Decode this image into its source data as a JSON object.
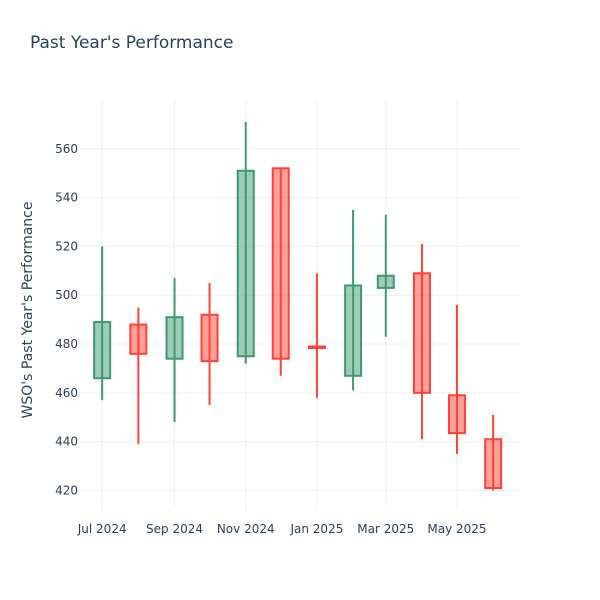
{
  "chart_data": {
    "type": "candlestick",
    "title": "Past Year's Performance",
    "xlabel": "",
    "ylabel": "WSO's Past Year's Performance",
    "ylim": [
      412,
      580
    ],
    "y_ticks": [
      420,
      440,
      460,
      480,
      500,
      520,
      540,
      560
    ],
    "x_ticks": [
      {
        "date": "2024-07-01",
        "label": "Jul 2024"
      },
      {
        "date": "2024-09-01",
        "label": "Sep 2024"
      },
      {
        "date": "2024-11-01",
        "label": "Nov 2024"
      },
      {
        "date": "2025-01-01",
        "label": "Jan 2025"
      },
      {
        "date": "2025-03-01",
        "label": "Mar 2025"
      },
      {
        "date": "2025-05-01",
        "label": "May 2025"
      }
    ],
    "xlim": [
      "2024-06-12",
      "2025-06-24"
    ],
    "grid": true,
    "colors": {
      "increasing": "#3d9970",
      "decreasing": "#ff4136"
    },
    "candles": [
      {
        "date": "2024-07-01",
        "open": 466,
        "high": 520,
        "low": 457,
        "close": 489
      },
      {
        "date": "2024-08-01",
        "open": 488,
        "high": 495,
        "low": 439,
        "close": 476
      },
      {
        "date": "2024-09-01",
        "open": 474,
        "high": 507,
        "low": 448,
        "close": 491
      },
      {
        "date": "2024-10-01",
        "open": 492,
        "high": 505,
        "low": 455,
        "close": 473
      },
      {
        "date": "2024-11-01",
        "open": 475,
        "high": 571,
        "low": 472,
        "close": 551
      },
      {
        "date": "2024-12-01",
        "open": 552,
        "high": 552,
        "low": 467,
        "close": 474
      },
      {
        "date": "2025-01-01",
        "open": 479,
        "high": 509,
        "low": 458,
        "close": 478.5
      },
      {
        "date": "2025-02-01",
        "open": 467,
        "high": 535,
        "low": 461,
        "close": 504
      },
      {
        "date": "2025-03-01",
        "open": 503,
        "high": 533,
        "low": 483,
        "close": 508
      },
      {
        "date": "2025-04-01",
        "open": 509,
        "high": 521,
        "low": 441,
        "close": 460
      },
      {
        "date": "2025-05-01",
        "open": 459,
        "high": 496,
        "low": 435,
        "close": 443.5
      },
      {
        "date": "2025-06-01",
        "open": 441,
        "high": 451,
        "low": 420,
        "close": 421
      }
    ]
  }
}
